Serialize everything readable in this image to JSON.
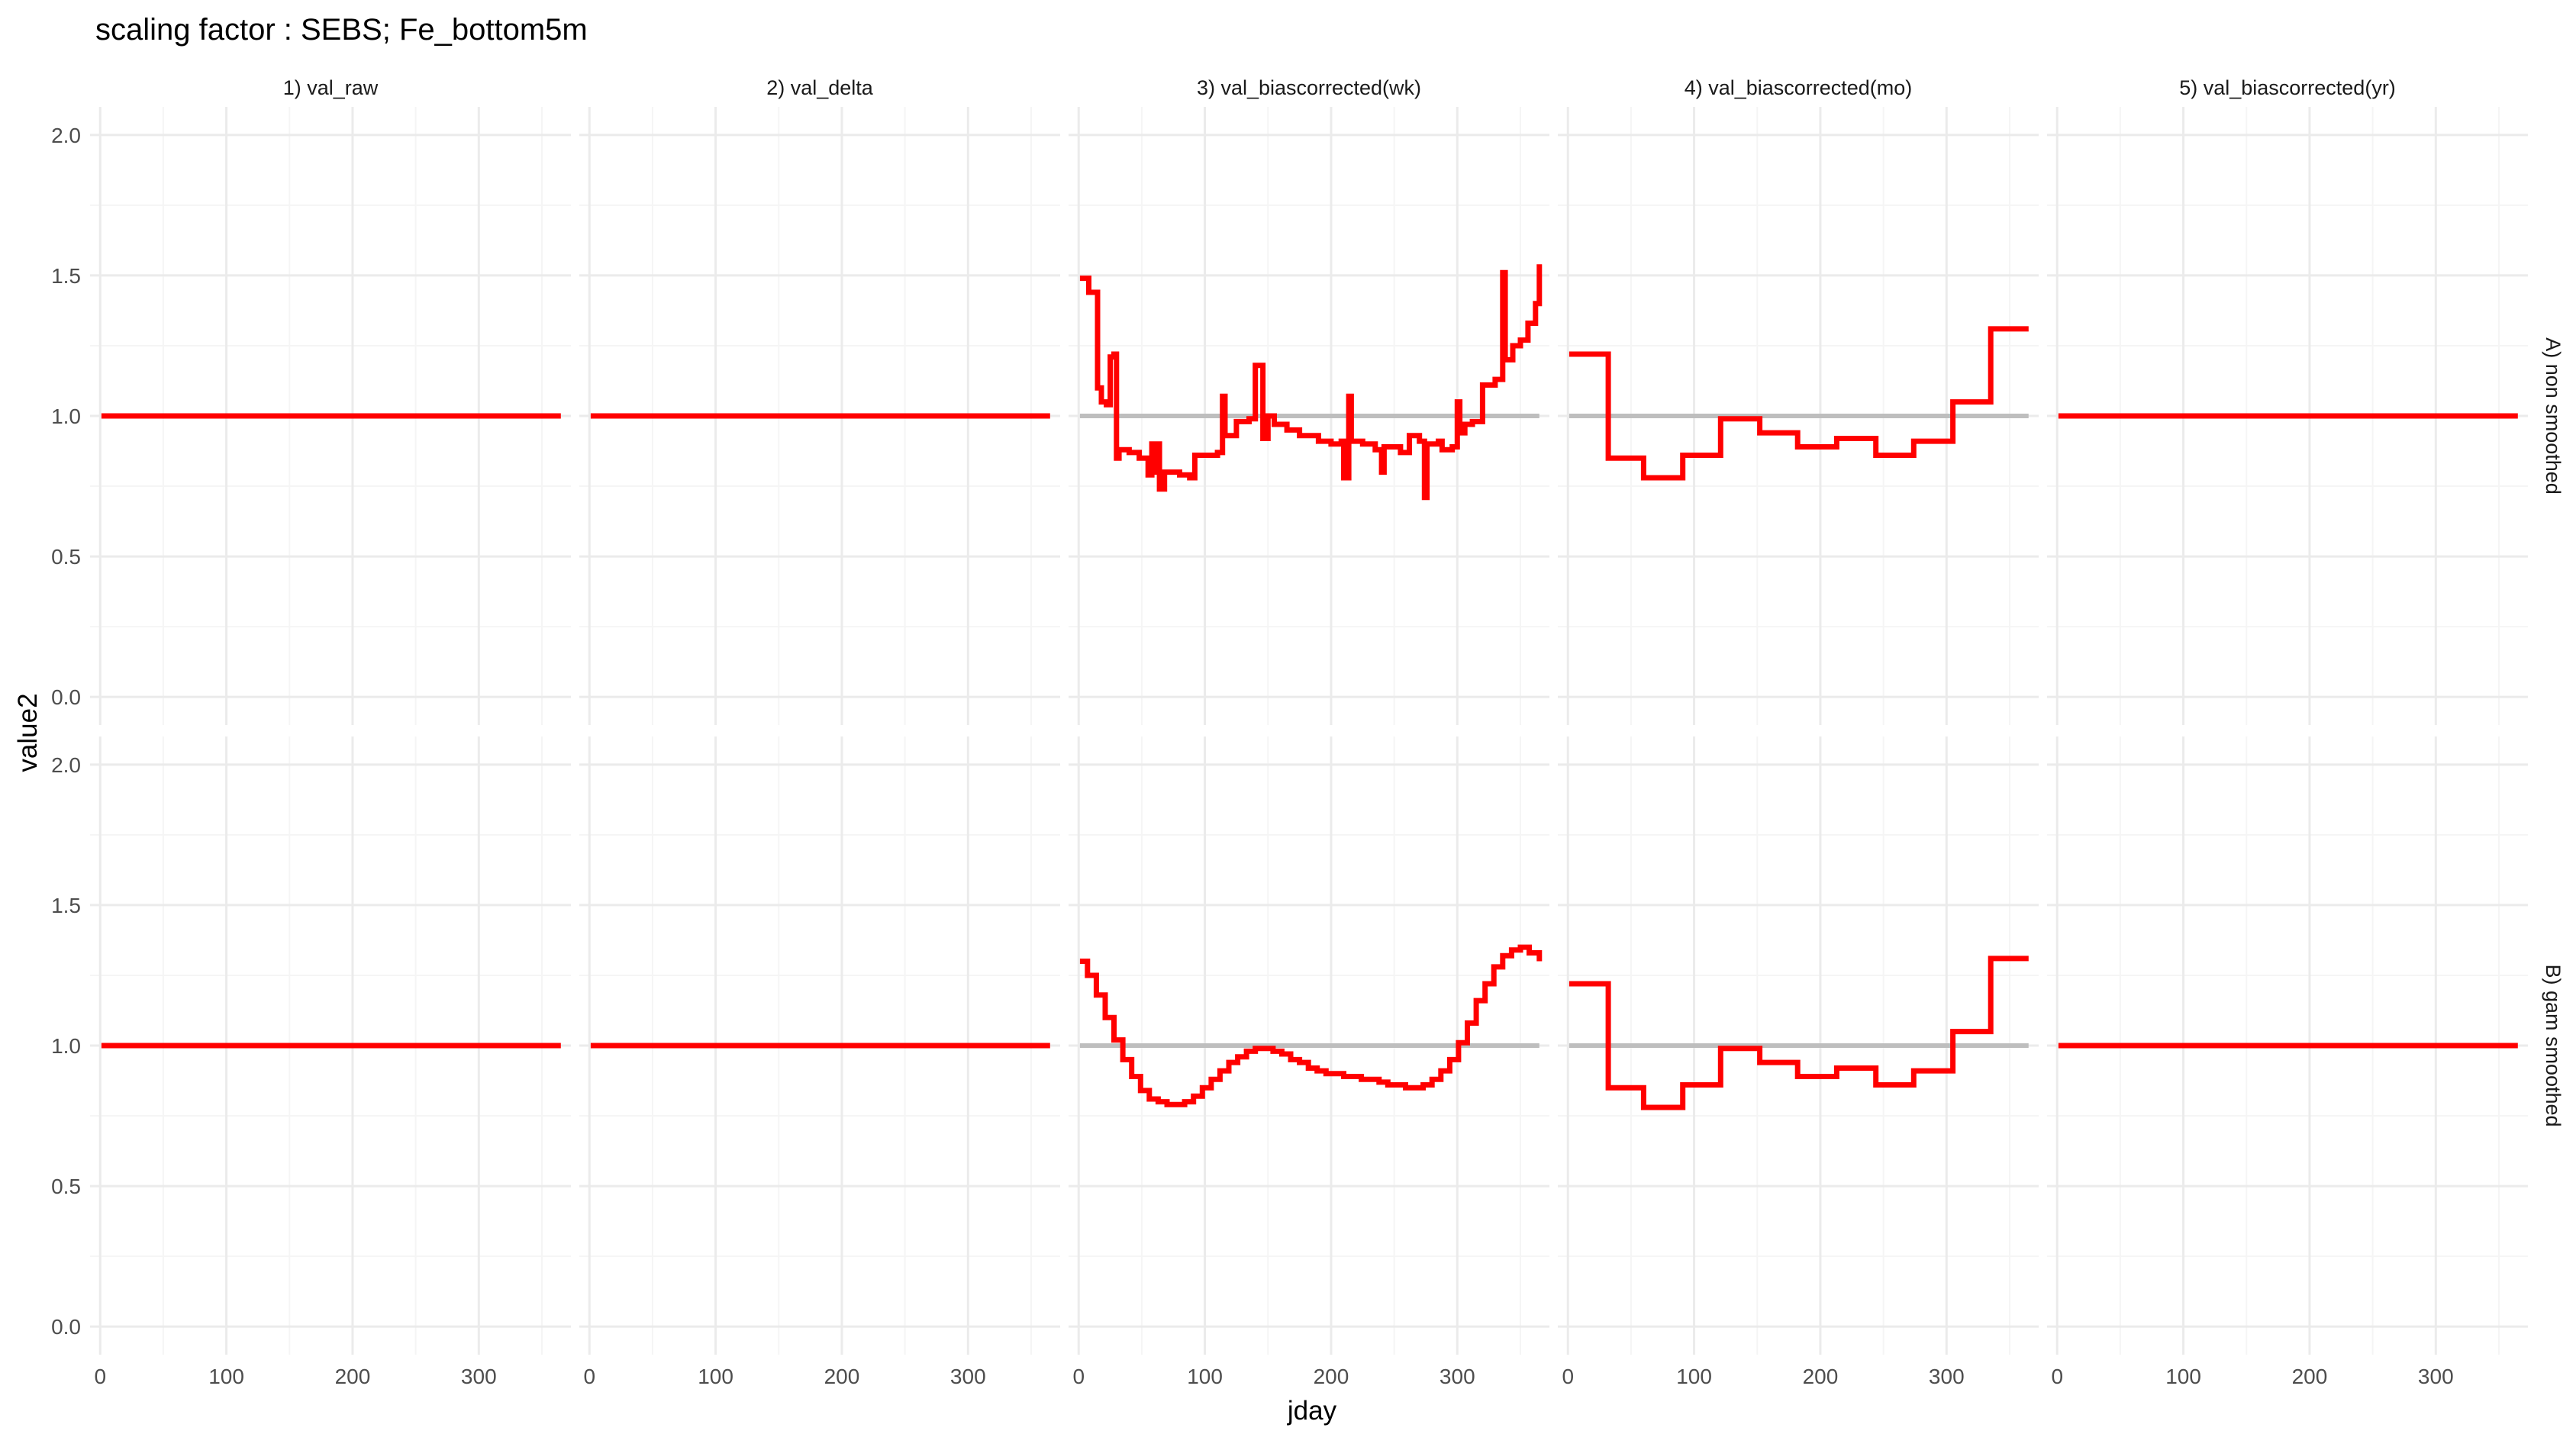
{
  "chart_data": {
    "type": "line",
    "title": "scaling factor : SEBS; Fe_bottom5m",
    "xlabel": "jday",
    "ylabel": "value2",
    "xlim": [
      -8,
      373
    ],
    "ylim": [
      -0.1,
      2.1
    ],
    "x_ticks": [
      0,
      100,
      200,
      300
    ],
    "y_ticks": [
      0.0,
      0.5,
      1.0,
      1.5,
      2.0
    ],
    "y_tick_labels": [
      "0.0",
      "0.5",
      "1.0",
      "1.5",
      "2.0"
    ],
    "grid": true,
    "columns": [
      "1) val_raw",
      "2) val_delta",
      "3) val_biascorrected(wk)",
      "4) val_biascorrected(mo)",
      "5) val_biascorrected(yr)"
    ],
    "rows": [
      "A) non smoothed",
      "B) gam smoothed"
    ],
    "colors": {
      "series": "#ff0000",
      "reference": "#bebebe",
      "grid_major": "#ebebeb",
      "grid_minor": "#f5f5f5"
    },
    "reference_line": {
      "y": 1.0,
      "x_range": [
        1,
        365
      ]
    },
    "panels": [
      {
        "row": 0,
        "col": 0,
        "reference": false,
        "step": true,
        "points": [
          [
            1,
            1.0
          ],
          [
            365,
            1.0
          ]
        ]
      },
      {
        "row": 0,
        "col": 1,
        "reference": false,
        "step": true,
        "points": [
          [
            1,
            1.0
          ],
          [
            365,
            1.0
          ]
        ]
      },
      {
        "row": 0,
        "col": 2,
        "reference": true,
        "step": true,
        "points": [
          [
            1,
            1.49
          ],
          [
            8,
            1.44
          ],
          [
            15,
            1.1
          ],
          [
            18,
            1.05
          ],
          [
            22,
            1.04
          ],
          [
            25,
            1.21
          ],
          [
            28,
            1.22
          ],
          [
            30,
            0.85
          ],
          [
            32,
            0.88
          ],
          [
            40,
            0.87
          ],
          [
            48,
            0.85
          ],
          [
            55,
            0.79
          ],
          [
            58,
            0.9
          ],
          [
            60,
            0.8
          ],
          [
            62,
            0.9
          ],
          [
            64,
            0.74
          ],
          [
            68,
            0.8
          ],
          [
            80,
            0.79
          ],
          [
            88,
            0.78
          ],
          [
            92,
            0.86
          ],
          [
            110,
            0.87
          ],
          [
            114,
            1.07
          ],
          [
            116,
            0.93
          ],
          [
            125,
            0.98
          ],
          [
            135,
            0.99
          ],
          [
            140,
            1.18
          ],
          [
            144,
            1.18
          ],
          [
            146,
            0.92
          ],
          [
            150,
            1.0
          ],
          [
            155,
            0.97
          ],
          [
            165,
            0.95
          ],
          [
            175,
            0.93
          ],
          [
            190,
            0.91
          ],
          [
            200,
            0.9
          ],
          [
            208,
            0.91
          ],
          [
            210,
            0.78
          ],
          [
            214,
            1.07
          ],
          [
            216,
            0.91
          ],
          [
            225,
            0.9
          ],
          [
            230,
            0.9
          ],
          [
            235,
            0.88
          ],
          [
            240,
            0.8
          ],
          [
            242,
            0.89
          ],
          [
            255,
            0.87
          ],
          [
            262,
            0.93
          ],
          [
            270,
            0.91
          ],
          [
            274,
            0.71
          ],
          [
            276,
            0.9
          ],
          [
            285,
            0.91
          ],
          [
            288,
            0.88
          ],
          [
            296,
            0.89
          ],
          [
            300,
            1.05
          ],
          [
            302,
            0.94
          ],
          [
            306,
            0.97
          ],
          [
            312,
            0.98
          ],
          [
            320,
            1.11
          ],
          [
            330,
            1.13
          ],
          [
            336,
            1.51
          ],
          [
            338,
            1.2
          ],
          [
            344,
            1.25
          ],
          [
            350,
            1.27
          ],
          [
            356,
            1.33
          ],
          [
            362,
            1.4
          ],
          [
            365,
            1.54
          ]
        ]
      },
      {
        "row": 0,
        "col": 3,
        "reference": true,
        "step": true,
        "points": [
          [
            1,
            1.22
          ],
          [
            32,
            0.85
          ],
          [
            60,
            0.78
          ],
          [
            91,
            0.86
          ],
          [
            121,
            0.99
          ],
          [
            152,
            0.94
          ],
          [
            182,
            0.89
          ],
          [
            213,
            0.92
          ],
          [
            244,
            0.86
          ],
          [
            274,
            0.91
          ],
          [
            305,
            1.05
          ],
          [
            335,
            1.31
          ],
          [
            365,
            1.31
          ]
        ]
      },
      {
        "row": 0,
        "col": 4,
        "reference": false,
        "step": true,
        "points": [
          [
            1,
            1.0
          ],
          [
            365,
            1.0
          ]
        ]
      },
      {
        "row": 1,
        "col": 0,
        "reference": false,
        "step": true,
        "points": [
          [
            1,
            1.0
          ],
          [
            365,
            1.0
          ]
        ]
      },
      {
        "row": 1,
        "col": 1,
        "reference": false,
        "step": true,
        "points": [
          [
            1,
            1.0
          ],
          [
            365,
            1.0
          ]
        ]
      },
      {
        "row": 1,
        "col": 2,
        "reference": true,
        "step": true,
        "points": [
          [
            1,
            1.3
          ],
          [
            7,
            1.25
          ],
          [
            14,
            1.18
          ],
          [
            21,
            1.1
          ],
          [
            28,
            1.02
          ],
          [
            35,
            0.95
          ],
          [
            42,
            0.89
          ],
          [
            49,
            0.84
          ],
          [
            56,
            0.81
          ],
          [
            63,
            0.8
          ],
          [
            70,
            0.79
          ],
          [
            77,
            0.79
          ],
          [
            84,
            0.8
          ],
          [
            91,
            0.82
          ],
          [
            98,
            0.85
          ],
          [
            105,
            0.88
          ],
          [
            112,
            0.91
          ],
          [
            119,
            0.94
          ],
          [
            126,
            0.96
          ],
          [
            133,
            0.98
          ],
          [
            140,
            0.99
          ],
          [
            147,
            0.99
          ],
          [
            154,
            0.98
          ],
          [
            161,
            0.97
          ],
          [
            168,
            0.95
          ],
          [
            175,
            0.94
          ],
          [
            182,
            0.92
          ],
          [
            189,
            0.91
          ],
          [
            196,
            0.9
          ],
          [
            203,
            0.9
          ],
          [
            210,
            0.89
          ],
          [
            217,
            0.89
          ],
          [
            224,
            0.88
          ],
          [
            231,
            0.88
          ],
          [
            238,
            0.87
          ],
          [
            245,
            0.86
          ],
          [
            252,
            0.86
          ],
          [
            259,
            0.85
          ],
          [
            266,
            0.85
          ],
          [
            273,
            0.86
          ],
          [
            280,
            0.88
          ],
          [
            287,
            0.91
          ],
          [
            294,
            0.95
          ],
          [
            301,
            1.01
          ],
          [
            308,
            1.08
          ],
          [
            315,
            1.16
          ],
          [
            322,
            1.22
          ],
          [
            329,
            1.28
          ],
          [
            336,
            1.32
          ],
          [
            343,
            1.34
          ],
          [
            350,
            1.35
          ],
          [
            357,
            1.33
          ],
          [
            365,
            1.3
          ]
        ]
      },
      {
        "row": 1,
        "col": 3,
        "reference": true,
        "step": true,
        "points": [
          [
            1,
            1.22
          ],
          [
            32,
            0.85
          ],
          [
            60,
            0.78
          ],
          [
            91,
            0.86
          ],
          [
            121,
            0.99
          ],
          [
            152,
            0.94
          ],
          [
            182,
            0.89
          ],
          [
            213,
            0.92
          ],
          [
            244,
            0.86
          ],
          [
            274,
            0.91
          ],
          [
            305,
            1.05
          ],
          [
            335,
            1.31
          ],
          [
            365,
            1.31
          ]
        ]
      },
      {
        "row": 1,
        "col": 4,
        "reference": false,
        "step": true,
        "points": [
          [
            1,
            1.0
          ],
          [
            365,
            1.0
          ]
        ]
      }
    ]
  }
}
